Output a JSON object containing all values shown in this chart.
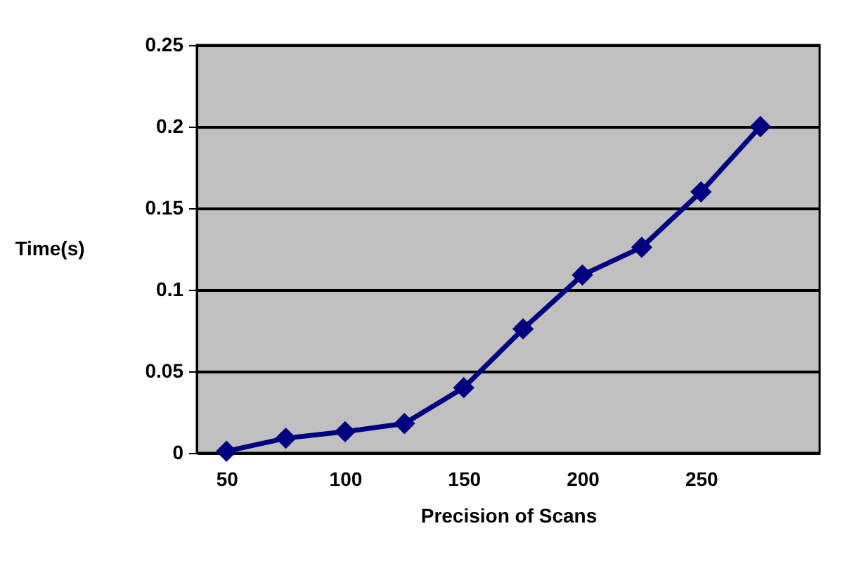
{
  "chart_data": {
    "type": "line",
    "xlabel": "Precision of Scans",
    "ylabel": "Time(s)",
    "x": [
      50,
      75,
      100,
      125,
      150,
      175,
      200,
      225,
      250,
      275
    ],
    "series": [
      {
        "color": "#000080",
        "values": [
          0.001,
          0.009,
          0.013,
          0.018,
          0.04,
          0.076,
          0.109,
          0.126,
          0.16,
          0.2
        ]
      }
    ],
    "xlim": [
      37.5,
      300
    ],
    "xticks": [
      50,
      100,
      150,
      200,
      250
    ],
    "ylim": [
      0,
      0.25
    ],
    "yticks": [
      0,
      0.05,
      0.1,
      0.15,
      0.2,
      0.25
    ],
    "grid": "y",
    "marker": "diamond",
    "line_style": "solid",
    "legend": false
  }
}
